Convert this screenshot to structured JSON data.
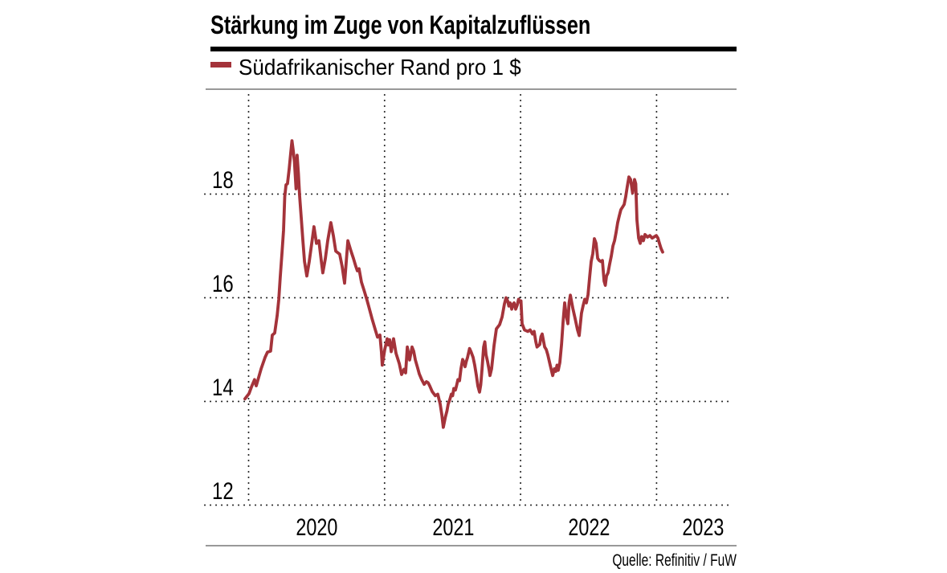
{
  "title": "Stärkung im Zuge von Kapitalzuflüssen",
  "legend": {
    "label": "Südafrikanischer Rand pro 1 $"
  },
  "source": "Quelle: Refinitiv / FuW",
  "colors": {
    "line": "#A4333A",
    "title_rule": "#000000",
    "hairline": "#999999",
    "grid_dots": "#222222",
    "text": "#000000",
    "background": "#FFFFFF"
  },
  "axes": {
    "y_ticks": [
      "18",
      "16",
      "14",
      "12"
    ],
    "x_ticks": [
      "2020",
      "2021",
      "2022",
      "2023"
    ]
  },
  "chart_data": {
    "type": "line",
    "title": "Stärkung im Zuge von Kapitalzuflüssen",
    "series_name": "Südafrikanischer Rand pro 1 $",
    "x_unit": "decimal_year",
    "x_range": [
      2019.95,
      2023.6
    ],
    "ylim": [
      11.95,
      20.0
    ],
    "y_gridlines": [
      12,
      14,
      16,
      18
    ],
    "x_gridlines": [
      2020,
      2021,
      2022,
      2023
    ],
    "grid": "dotted",
    "legend_position": "top-left",
    "points": [
      [
        2019.973,
        14.05
      ],
      [
        2020.003,
        14.15
      ],
      [
        2020.021,
        14.28
      ],
      [
        2020.044,
        14.42
      ],
      [
        2020.056,
        14.3
      ],
      [
        2020.092,
        14.63
      ],
      [
        2020.121,
        14.85
      ],
      [
        2020.139,
        14.95
      ],
      [
        2020.162,
        14.97
      ],
      [
        2020.174,
        15.28
      ],
      [
        2020.192,
        15.32
      ],
      [
        2020.21,
        15.66
      ],
      [
        2020.222,
        15.97
      ],
      [
        2020.233,
        16.4
      ],
      [
        2020.245,
        16.85
      ],
      [
        2020.257,
        17.3
      ],
      [
        2020.266,
        17.95
      ],
      [
        2020.275,
        18.18
      ],
      [
        2020.286,
        18.2
      ],
      [
        2020.298,
        18.48
      ],
      [
        2020.31,
        18.8
      ],
      [
        2020.319,
        19.03
      ],
      [
        2020.328,
        18.85
      ],
      [
        2020.337,
        18.62
      ],
      [
        2020.349,
        18.1
      ],
      [
        2020.357,
        18.75
      ],
      [
        2020.366,
        18.4
      ],
      [
        2020.375,
        17.97
      ],
      [
        2020.387,
        17.55
      ],
      [
        2020.399,
        17.1
      ],
      [
        2020.411,
        16.7
      ],
      [
        2020.428,
        16.42
      ],
      [
        2020.446,
        16.7
      ],
      [
        2020.464,
        17.05
      ],
      [
        2020.481,
        17.37
      ],
      [
        2020.499,
        17.05
      ],
      [
        2020.517,
        17.1
      ],
      [
        2020.535,
        16.7
      ],
      [
        2020.546,
        16.48
      ],
      [
        2020.564,
        16.75
      ],
      [
        2020.582,
        17.1
      ],
      [
        2020.605,
        17.45
      ],
      [
        2020.623,
        17.2
      ],
      [
        2020.641,
        16.9
      ],
      [
        2020.67,
        16.84
      ],
      [
        2020.688,
        16.6
      ],
      [
        2020.706,
        16.28
      ],
      [
        2020.73,
        17.1
      ],
      [
        2020.753,
        16.9
      ],
      [
        2020.771,
        16.76
      ],
      [
        2020.789,
        16.6
      ],
      [
        2020.8,
        16.52
      ],
      [
        2020.812,
        16.56
      ],
      [
        2020.83,
        16.3
      ],
      [
        2020.848,
        16.15
      ],
      [
        2020.871,
        15.95
      ],
      [
        2020.889,
        15.78
      ],
      [
        2020.907,
        15.6
      ],
      [
        2020.93,
        15.4
      ],
      [
        2020.948,
        15.24
      ],
      [
        2020.966,
        15.28
      ],
      [
        2020.977,
        14.95
      ],
      [
        2020.983,
        14.7
      ],
      [
        2021.001,
        15.0
      ],
      [
        2021.019,
        15.21
      ],
      [
        2021.028,
        15.09
      ],
      [
        2021.037,
        15.19
      ],
      [
        2021.049,
        14.96
      ],
      [
        2021.066,
        15.21
      ],
      [
        2021.084,
        14.93
      ],
      [
        2021.108,
        14.73
      ],
      [
        2021.125,
        14.52
      ],
      [
        2021.143,
        14.62
      ],
      [
        2021.155,
        14.55
      ],
      [
        2021.167,
        15.05
      ],
      [
        2021.184,
        14.8
      ],
      [
        2021.202,
        15.05
      ],
      [
        2021.214,
        14.97
      ],
      [
        2021.226,
        14.8
      ],
      [
        2021.243,
        14.65
      ],
      [
        2021.255,
        14.53
      ],
      [
        2021.273,
        14.42
      ],
      [
        2021.291,
        14.33
      ],
      [
        2021.308,
        14.38
      ],
      [
        2021.32,
        14.36
      ],
      [
        2021.332,
        14.3
      ],
      [
        2021.35,
        14.19
      ],
      [
        2021.373,
        14.11
      ],
      [
        2021.391,
        14.14
      ],
      [
        2021.409,
        13.95
      ],
      [
        2021.421,
        13.74
      ],
      [
        2021.432,
        13.5
      ],
      [
        2021.447,
        13.7
      ],
      [
        2021.459,
        13.82
      ],
      [
        2021.468,
        13.95
      ],
      [
        2021.48,
        14.04
      ],
      [
        2021.491,
        14.14
      ],
      [
        2021.5,
        14.11
      ],
      [
        2021.509,
        14.25
      ],
      [
        2021.521,
        14.22
      ],
      [
        2021.53,
        14.31
      ],
      [
        2021.539,
        14.42
      ],
      [
        2021.551,
        14.4
      ],
      [
        2021.562,
        14.63
      ],
      [
        2021.574,
        14.81
      ],
      [
        2021.583,
        14.76
      ],
      [
        2021.592,
        14.67
      ],
      [
        2021.601,
        14.77
      ],
      [
        2021.61,
        14.85
      ],
      [
        2021.625,
        15.02
      ],
      [
        2021.637,
        14.95
      ],
      [
        2021.651,
        14.85
      ],
      [
        2021.663,
        14.7
      ],
      [
        2021.675,
        14.5
      ],
      [
        2021.686,
        14.3
      ],
      [
        2021.698,
        14.18
      ],
      [
        2021.707,
        14.32
      ],
      [
        2021.716,
        14.6
      ],
      [
        2021.728,
        15.05
      ],
      [
        2021.737,
        15.15
      ],
      [
        2021.746,
        14.9
      ],
      [
        2021.757,
        14.77
      ],
      [
        2021.769,
        14.6
      ],
      [
        2021.775,
        14.5
      ],
      [
        2021.787,
        14.63
      ],
      [
        2021.805,
        15.08
      ],
      [
        2021.822,
        15.4
      ],
      [
        2021.846,
        15.48
      ],
      [
        2021.864,
        15.63
      ],
      [
        2021.881,
        15.88
      ],
      [
        2021.893,
        16.0
      ],
      [
        2021.905,
        15.94
      ],
      [
        2021.914,
        15.84
      ],
      [
        2021.923,
        15.9
      ],
      [
        2021.935,
        15.78
      ],
      [
        2021.943,
        15.87
      ],
      [
        2021.952,
        15.9
      ],
      [
        2021.964,
        15.78
      ],
      [
        2021.976,
        15.86
      ],
      [
        2021.985,
        15.97
      ],
      [
        2021.994,
        15.92
      ],
      [
        2022.003,
        15.94
      ],
      [
        2022.011,
        15.5
      ],
      [
        2022.029,
        15.38
      ],
      [
        2022.053,
        15.35
      ],
      [
        2022.07,
        15.38
      ],
      [
        2022.088,
        15.3
      ],
      [
        2022.1,
        15.35
      ],
      [
        2022.112,
        15.15
      ],
      [
        2022.121,
        15.05
      ],
      [
        2022.141,
        15.1
      ],
      [
        2022.15,
        15.25
      ],
      [
        2022.159,
        15.3
      ],
      [
        2022.177,
        15.05
      ],
      [
        2022.189,
        15.0
      ],
      [
        2022.2,
        14.9
      ],
      [
        2022.218,
        14.7
      ],
      [
        2022.236,
        14.5
      ],
      [
        2022.248,
        14.63
      ],
      [
        2022.259,
        14.58
      ],
      [
        2022.268,
        14.7
      ],
      [
        2022.277,
        14.6
      ],
      [
        2022.289,
        14.75
      ],
      [
        2022.301,
        15.1
      ],
      [
        2022.313,
        15.55
      ],
      [
        2022.324,
        15.9
      ],
      [
        2022.336,
        15.65
      ],
      [
        2022.348,
        15.5
      ],
      [
        2022.357,
        15.9
      ],
      [
        2022.366,
        16.05
      ],
      [
        2022.384,
        15.8
      ],
      [
        2022.401,
        15.6
      ],
      [
        2022.419,
        15.38
      ],
      [
        2022.431,
        15.27
      ],
      [
        2022.448,
        15.7
      ],
      [
        2022.46,
        15.85
      ],
      [
        2022.472,
        15.97
      ],
      [
        2022.484,
        15.9
      ],
      [
        2022.496,
        16.06
      ],
      [
        2022.508,
        16.4
      ],
      [
        2022.519,
        16.7
      ],
      [
        2022.531,
        16.85
      ],
      [
        2022.543,
        17.14
      ],
      [
        2022.555,
        17.05
      ],
      [
        2022.567,
        16.76
      ],
      [
        2022.578,
        16.72
      ],
      [
        2022.59,
        16.7
      ],
      [
        2022.602,
        16.72
      ],
      [
        2022.614,
        16.32
      ],
      [
        2022.623,
        16.24
      ],
      [
        2022.632,
        16.42
      ],
      [
        2022.643,
        16.48
      ],
      [
        2022.655,
        16.65
      ],
      [
        2022.667,
        16.8
      ],
      [
        2022.679,
        17.0
      ],
      [
        2022.691,
        17.1
      ],
      [
        2022.702,
        17.25
      ],
      [
        2022.714,
        17.45
      ],
      [
        2022.726,
        17.58
      ],
      [
        2022.738,
        17.7
      ],
      [
        2022.75,
        17.75
      ],
      [
        2022.762,
        17.8
      ],
      [
        2022.773,
        17.95
      ],
      [
        2022.785,
        18.15
      ],
      [
        2022.797,
        18.33
      ],
      [
        2022.809,
        18.28
      ],
      [
        2022.824,
        18.02
      ],
      [
        2022.838,
        18.28
      ],
      [
        2022.847,
        18.2
      ],
      [
        2022.856,
        17.5
      ],
      [
        2022.868,
        17.15
      ],
      [
        2022.88,
        17.05
      ],
      [
        2022.891,
        17.18
      ],
      [
        2022.903,
        17.1
      ],
      [
        2022.915,
        17.22
      ],
      [
        2022.933,
        17.17
      ],
      [
        2022.951,
        17.2
      ],
      [
        2022.968,
        17.15
      ],
      [
        2022.986,
        17.18
      ],
      [
        2022.998,
        17.2
      ],
      [
        2023.01,
        17.15
      ],
      [
        2023.021,
        17.05
      ],
      [
        2023.033,
        16.95
      ],
      [
        2023.045,
        16.88
      ]
    ]
  }
}
